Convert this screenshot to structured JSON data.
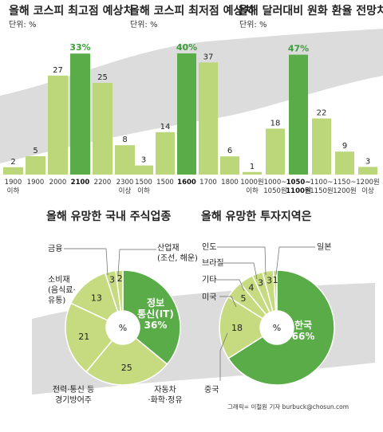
{
  "colors": {
    "bar": "#bcd67a",
    "highlight": "#5aac48",
    "pie_light": "#c6db7f",
    "band": "#d9d9d9",
    "band_dark": "#c8c8c8"
  },
  "chart_data": [
    {
      "type": "bar",
      "title": "올해 코스피 최고점 예상치",
      "unit": "단위: %",
      "categories": [
        [
          "1900",
          "이하"
        ],
        [
          "1900"
        ],
        [
          "2000"
        ],
        [
          "2100"
        ],
        [
          "2200"
        ],
        [
          "2300",
          "이상"
        ]
      ],
      "values": [
        2,
        5,
        27,
        33,
        25,
        8
      ],
      "value_labels": [
        "2",
        "5",
        "27",
        "33%",
        "25",
        "8"
      ],
      "highlight_index": 3
    },
    {
      "type": "bar",
      "title": "올해 코스피 최저점 예상치",
      "unit": "단위: %",
      "categories": [
        [
          "1500",
          "이하"
        ],
        [
          "1500"
        ],
        [
          "1600"
        ],
        [
          "1700"
        ],
        [
          "1800"
        ]
      ],
      "values": [
        3,
        14,
        40,
        37,
        6
      ],
      "value_labels": [
        "3",
        "14",
        "40%",
        "37",
        "6"
      ],
      "highlight_index": 2
    },
    {
      "type": "bar",
      "title": "올해 달러대비 원화 환율 전망치",
      "unit": "단위: %",
      "categories": [
        [
          "1000원",
          "이하"
        ],
        [
          "1000~",
          "1050원"
        ],
        [
          "1050~",
          "1100원"
        ],
        [
          "1100~",
          "1150원"
        ],
        [
          "1150~",
          "1200원"
        ],
        [
          "1200원",
          "이상"
        ]
      ],
      "values": [
        1,
        18,
        47,
        22,
        9,
        3
      ],
      "value_labels": [
        "1",
        "18",
        "47%",
        "22",
        "9",
        "3"
      ],
      "highlight_index": 2
    },
    {
      "type": "pie",
      "title": "올해 유망한 국내 주식업종",
      "center_label": "%",
      "slices": [
        {
          "label": [
            "정보",
            "통신(IT)"
          ],
          "value": 36,
          "value_label": "36%",
          "highlight": true
        },
        {
          "label": [
            "자동차",
            "·화학·정유"
          ],
          "value": 25,
          "value_label": "25"
        },
        {
          "label": [
            "전력·통신 등",
            "경기방어주"
          ],
          "value": 21,
          "value_label": "21"
        },
        {
          "label": [
            "소비재",
            "(음식료·",
            "유통)"
          ],
          "value": 13,
          "value_label": "13"
        },
        {
          "label": [
            "금융"
          ],
          "value": 3,
          "value_label": "3"
        },
        {
          "label": [
            "산업재",
            "(조선, 해운)"
          ],
          "value": 2,
          "value_label": "2"
        }
      ]
    },
    {
      "type": "pie",
      "title": "올해 유망한 투자지역은",
      "center_label": "%",
      "slices": [
        {
          "label": [
            "한국"
          ],
          "value": 66,
          "value_label": "66%",
          "highlight": true
        },
        {
          "label": [
            "중국"
          ],
          "value": 18,
          "value_label": "18"
        },
        {
          "label": [
            "미국"
          ],
          "value": 5,
          "value_label": "5"
        },
        {
          "label": [
            "기타"
          ],
          "value": 4,
          "value_label": "4"
        },
        {
          "label": [
            "브라질"
          ],
          "value": 3,
          "value_label": "3"
        },
        {
          "label": [
            "인도"
          ],
          "value": 3,
          "value_label": "3"
        },
        {
          "label": [
            "일본"
          ],
          "value": 1,
          "value_label": "1"
        }
      ]
    }
  ],
  "credit": "그래픽= 이철원 기자 burbuck@chosun.com"
}
